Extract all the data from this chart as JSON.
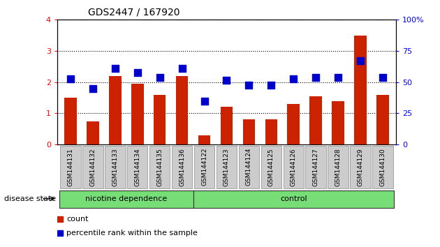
{
  "title": "GDS2447 / 167920",
  "categories": [
    "GSM144131",
    "GSM144132",
    "GSM144133",
    "GSM144134",
    "GSM144135",
    "GSM144136",
    "GSM144122",
    "GSM144123",
    "GSM144124",
    "GSM144125",
    "GSM144126",
    "GSM144127",
    "GSM144128",
    "GSM144129",
    "GSM144130"
  ],
  "bar_values": [
    1.5,
    0.75,
    2.2,
    1.95,
    1.6,
    2.2,
    0.3,
    1.2,
    0.8,
    0.8,
    1.3,
    1.55,
    1.4,
    3.5,
    1.6
  ],
  "dot_values": [
    2.1,
    1.8,
    2.45,
    2.3,
    2.15,
    2.45,
    1.38,
    2.05,
    1.9,
    1.9,
    2.1,
    2.15,
    2.15,
    2.68,
    2.15
  ],
  "bar_color": "#cc2200",
  "dot_color": "#0000cc",
  "ylim_left": [
    0,
    4
  ],
  "ylim_right": [
    0,
    100
  ],
  "yticks_left": [
    0,
    1,
    2,
    3,
    4
  ],
  "yticks_right": [
    0,
    25,
    50,
    75,
    100
  ],
  "ytick_labels_right": [
    "0",
    "25",
    "50",
    "75",
    "100%"
  ],
  "group1_label": "nicotine dependence",
  "group2_label": "control",
  "group1_count": 6,
  "group2_count": 9,
  "disease_state_label": "disease state",
  "legend_bar_label": "count",
  "legend_dot_label": "percentile rank within the sample",
  "group_bg_color": "#77dd77",
  "tick_label_bg": "#cccccc",
  "bar_width": 0.55,
  "dot_size": 55,
  "title_fontsize": 10,
  "axis_fontsize": 8,
  "legend_fontsize": 8,
  "tick_fontsize": 6.5
}
